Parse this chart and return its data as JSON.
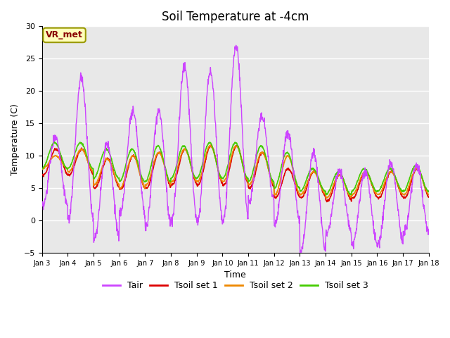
{
  "title": "Soil Temperature at -4cm",
  "xlabel": "Time",
  "ylabel": "Temperature (C)",
  "ylim": [
    -5,
    30
  ],
  "xlim": [
    0,
    15
  ],
  "x_tick_labels": [
    "Jan 3",
    "Jan 4",
    "Jan 5",
    "Jan 6",
    "Jan 7",
    "Jan 8",
    "Jan 9",
    "Jan 10",
    "Jan 11",
    "Jan 12",
    "Jan 13",
    "Jan 14",
    "Jan 15",
    "Jan 16",
    "Jan 17",
    "Jan 18"
  ],
  "legend_labels": [
    "Tair",
    "Tsoil set 1",
    "Tsoil set 2",
    "Tsoil set 3"
  ],
  "colors": {
    "Tair": "#cc44ff",
    "Tsoil_set1": "#dd0000",
    "Tsoil_set2": "#ee8800",
    "Tsoil_set3": "#44cc00"
  },
  "annotation_text": "VR_met",
  "annotation_color": "#880000",
  "annotation_bg": "#ffffbb",
  "annotation_edge": "#999900",
  "plot_bg": "#e8e8e8",
  "fig_bg": "#ffffff",
  "grid_color": "#ffffff",
  "title_fontsize": 12,
  "label_fontsize": 9,
  "tick_fontsize": 8,
  "legend_fontsize": 9,
  "Tair_peaks": [
    13,
    22,
    12,
    17,
    17,
    24,
    23,
    27,
    16,
    13.5,
    10.5,
    7.5,
    7.5,
    9,
    8.5,
    9
  ],
  "Tair_troughs": [
    2,
    0,
    -3,
    1,
    -1,
    0,
    0,
    0,
    3,
    -0.5,
    -5,
    -2,
    -4,
    -3.5,
    -2,
    2
  ],
  "Tsoil1_peaks": [
    11,
    11,
    9.5,
    10,
    10.5,
    11,
    11.5,
    11.5,
    10.5,
    8,
    7.5,
    7,
    7.5,
    7.5,
    8,
    9
  ],
  "Tsoil1_troughs": [
    7,
    7,
    5,
    4.8,
    5,
    5.5,
    5.5,
    5.5,
    5,
    3.5,
    3.5,
    3,
    3.5,
    3.5,
    3.5,
    4.5
  ],
  "Tsoil2_peaks": [
    10,
    11,
    9.5,
    10,
    10.5,
    11,
    11.5,
    11.5,
    10.5,
    10,
    7.5,
    7,
    7.5,
    7.5,
    8,
    9
  ],
  "Tsoil2_troughs": [
    8,
    7.5,
    5.5,
    5,
    5.5,
    6,
    6,
    6,
    5.5,
    4,
    4,
    3.5,
    4,
    4,
    4,
    5
  ],
  "Tsoil3_peaks": [
    12,
    12,
    11,
    11,
    11.5,
    11.5,
    12,
    12,
    11.5,
    10.5,
    8,
    7.5,
    8,
    8,
    8.5,
    9.5
  ],
  "Tsoil3_troughs": [
    8,
    8,
    6.5,
    6,
    6,
    6.5,
    6.5,
    6.5,
    6,
    5,
    4.5,
    4,
    4.5,
    4.5,
    4.5,
    5.5
  ]
}
